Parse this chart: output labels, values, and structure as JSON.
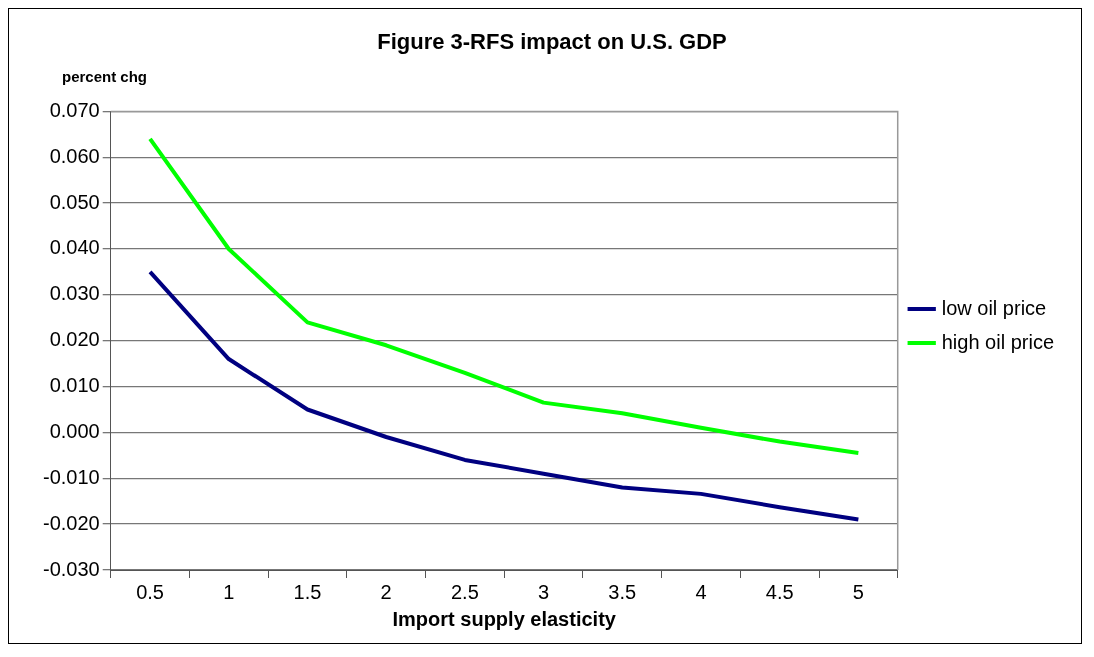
{
  "chart_data": {
    "type": "line",
    "title": "Figure 3-RFS impact on U.S. GDP",
    "ylabel": "percent chg",
    "xlabel": "Import supply elasticity",
    "categories": [
      "0.5",
      "1",
      "1.5",
      "2",
      "2.5",
      "3",
      "3.5",
      "4",
      "4.5",
      "5"
    ],
    "series": [
      {
        "name": "low oil price",
        "color": "#000080",
        "values": [
          0.035,
          0.016,
          0.005,
          -0.001,
          -0.006,
          -0.009,
          -0.012,
          -0.0134,
          -0.0163,
          -0.019
        ]
      },
      {
        "name": "high oil price",
        "color": "#00ff00",
        "values": [
          0.064,
          0.04,
          0.024,
          0.019,
          0.013,
          0.0065,
          0.0042,
          0.001,
          -0.002,
          -0.0045
        ]
      }
    ],
    "ylim": [
      -0.03,
      0.07
    ],
    "yticks": [
      {
        "value": -0.03,
        "label": "-0.030"
      },
      {
        "value": -0.02,
        "label": "-0.020"
      },
      {
        "value": -0.01,
        "label": "-0.010"
      },
      {
        "value": 0,
        "label": "0.000"
      },
      {
        "value": 0.01,
        "label": "0.010"
      },
      {
        "value": 0.02,
        "label": "0.020"
      },
      {
        "value": 0.03,
        "label": "0.030"
      },
      {
        "value": 0.04,
        "label": "0.040"
      },
      {
        "value": 0.05,
        "label": "0.050"
      },
      {
        "value": 0.06,
        "label": "0.060"
      },
      {
        "value": 0.07,
        "label": "0.070"
      }
    ],
    "grid": "y",
    "legend": "right",
    "marker": "none",
    "line_style": "solid"
  }
}
